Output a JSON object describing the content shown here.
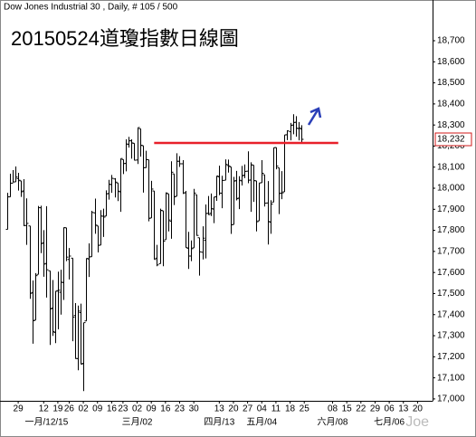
{
  "chart_data": {
    "type": "ohlc",
    "header": "Dow Jones Industrial 30 , Daily, # 105 / 500",
    "title": "20150524道瓊指數日線圖",
    "watermark": "Joe",
    "color": "#000000",
    "open": [
      17805,
      17959,
      18024,
      18030,
      18046,
      18035,
      17987,
      17823,
      17821,
      17505,
      17374,
      17591,
      17907,
      17741,
      17643,
      17608,
      17431,
      17315,
      17514,
      17506,
      17552,
      17812,
      17662,
      17668,
      17396,
      17191,
      17410,
      17169,
      17370,
      17664,
      17675,
      17883,
      17821,
      17730,
      17867,
      17868,
      17975,
      18017,
      18044,
      18025,
      17983,
      18136,
      18118,
      18208,
      18225,
      18213,
      18134,
      18282,
      18202,
      18098,
      18135,
      17859,
      17987,
      17668,
      17642,
      17893,
      17756,
      17973,
      17843,
      18068,
      17962,
      18128,
      18116,
      17979,
      17715,
      17678,
      17717,
      17969,
      17765,
      17696,
      17753,
      17881,
      17881,
      17901,
      17960,
      18054,
      17976,
      18038,
      18108,
      18101,
      17828,
      18036,
      17953,
      18035,
      18062,
      18081,
      18039,
      18109,
      18035,
      17845,
      18026,
      18064,
      17930,
      17839,
      17934,
      18193,
      18097,
      17977,
      17983,
      18254,
      18268,
      18300,
      18313,
      18283,
      18281
    ],
    "high": [
      17978,
      18069,
      18086,
      18103,
      18073,
      18035,
      18043,
      17952,
      17821,
      17562,
      17597,
      17916,
      17917,
      17801,
      17915,
      17608,
      17564,
      17512,
      17604,
      17613,
      17814,
      17812,
      17716,
      17668,
      17455,
      17443,
      17452,
      17362,
      17667,
      17738,
      17893,
      17951,
      17821,
      17896,
      17903,
      17990,
      18040,
      18063,
      18048,
      18025,
      18141,
      18136,
      18232,
      18244,
      18232,
      18213,
      18288,
      18282,
      18202,
      18178,
      18135,
      18035,
      17987,
      17731,
      17903,
      17893,
      17980,
      17973,
      18128,
      18068,
      18166,
      18152,
      18133,
      17987,
      17793,
      17752,
      17997,
      17969,
      17765,
      17819,
      17923,
      17963,
      17975,
      17958,
      18058,
      18107,
      18059,
      18137,
      18136,
      18101,
      18054,
      18082,
      18057,
      18106,
      18113,
      18175,
      18123,
      18109,
      18035,
      18025,
      18133,
      18064,
      18034,
      17943,
      18193,
      18193,
      18097,
      18081,
      18253,
      18275,
      18310,
      18351,
      18342,
      18314,
      18299
    ],
    "low": [
      17805,
      17959,
      18027,
      18030,
      17989,
      17959,
      17820,
      17731,
      17475,
      17262,
      17374,
      17591,
      17692,
      17580,
      17481,
      17256,
      17299,
      17265,
      17330,
      17400,
      17470,
      17654,
      17567,
      17274,
      17190,
      17136,
      17165,
      17037,
      17370,
      17579,
      17675,
      17784,
      17695,
      17730,
      17769,
      17868,
      17946,
      17978,
      17956,
      17939,
      17888,
      18067,
      18080,
      18193,
      18140,
      18132,
      18115,
      18150,
      17979,
      18096,
      17843,
      17859,
      17662,
      17630,
      17642,
      17630,
      17756,
      17795,
      17760,
      17920,
      17962,
      18101,
      17973,
      17718,
      17617,
      17654,
      17717,
      17774,
      17585,
      17662,
      17667,
      17873,
      17868,
      17834,
      17940,
      17967,
      17905,
      18038,
      18074,
      17783,
      17828,
      17942,
      17901,
      18013,
      18048,
      18024,
      17888,
      17935,
      17795,
      17845,
      18026,
      17913,
      17733,
      17784,
      17934,
      18090,
      17877,
      17948,
      17983,
      18228,
      18227,
      18256,
      18245,
      18227,
      18214
    ],
    "close": [
      17959,
      18024,
      18030,
      18053,
      18038,
      17983,
      17823,
      17833,
      17501,
      17371,
      17585,
      17908,
      17737,
      17640,
      17613,
      17427,
      17320,
      17511,
      17516,
      17554,
      17813,
      17673,
      17678,
      17388,
      17192,
      17417,
      17165,
      17362,
      17667,
      17674,
      17885,
      17825,
      17729,
      17868,
      17863,
      17973,
      18019,
      18047,
      18029,
      17986,
      18141,
      18117,
      18210,
      18225,
      18215,
      18133,
      18288,
      18204,
      18097,
      18136,
      17857,
      17996,
      17662,
      17636,
      17895,
      17749,
      17977,
      17849,
      18076,
      17959,
      18128,
      18116,
      17977,
      17718,
      17678,
      17713,
      17977,
      17776,
      17698,
      17763,
      17880,
      17875,
      17903,
      17958,
      18058,
      17977,
      18037,
      18113,
      18106,
      17826,
      18034,
      17950,
      18038,
      18059,
      18080,
      18038,
      18111,
      18036,
      17841,
      18025,
      18071,
      17929,
      17842,
      17925,
      18192,
      18105,
      17975,
      17978,
      18253,
      18272,
      18298,
      18312,
      18285,
      18286,
      18232
    ],
    "xlim": [
      -2.1,
      150.3
    ],
    "xticks": [
      {
        "value": 4,
        "label": "29"
      },
      {
        "value": 13,
        "label": "12"
      },
      {
        "value": 18,
        "label": "19"
      },
      {
        "value": 22,
        "label": "26"
      },
      {
        "value": 27,
        "label": "02"
      },
      {
        "value": 32,
        "label": "09"
      },
      {
        "value": 37,
        "label": "16"
      },
      {
        "value": 41,
        "label": "23"
      },
      {
        "value": 46,
        "label": "02"
      },
      {
        "value": 51,
        "label": "09"
      },
      {
        "value": 56,
        "label": "16"
      },
      {
        "value": 61,
        "label": "23"
      },
      {
        "value": 66,
        "label": "30"
      },
      {
        "value": 75,
        "label": "13"
      },
      {
        "value": 80,
        "label": "20"
      },
      {
        "value": 85,
        "label": "27"
      },
      {
        "value": 90,
        "label": "04"
      },
      {
        "value": 95,
        "label": "11"
      },
      {
        "value": 100,
        "label": "18"
      },
      {
        "value": 105,
        "label": "25"
      },
      {
        "value": 115,
        "label": "08"
      },
      {
        "value": 120,
        "label": "15"
      },
      {
        "value": 125,
        "label": "22"
      },
      {
        "value": 130,
        "label": "29"
      },
      {
        "value": 135,
        "label": "06"
      },
      {
        "value": 140,
        "label": "13"
      },
      {
        "value": 145,
        "label": "20"
      }
    ],
    "month_ticks": [
      {
        "value": 14,
        "label": "一月/12/15"
      },
      {
        "value": 46,
        "label": "三月/02"
      },
      {
        "value": 75,
        "label": "四月/13"
      },
      {
        "value": 90,
        "label": "五月/04"
      },
      {
        "value": 115,
        "label": "六月/08"
      },
      {
        "value": 135,
        "label": "七月/06"
      }
    ],
    "ylim": [
      16991,
      18889
    ],
    "yticks": [
      {
        "value": 17000,
        "label": "17,000"
      },
      {
        "value": 17100,
        "label": "17,100"
      },
      {
        "value": 17200,
        "label": "17,200"
      },
      {
        "value": 17300,
        "label": "17,300"
      },
      {
        "value": 17400,
        "label": "17,400"
      },
      {
        "value": 17500,
        "label": "17,500"
      },
      {
        "value": 17600,
        "label": "17,600"
      },
      {
        "value": 17700,
        "label": "17,700"
      },
      {
        "value": 17800,
        "label": "17,800"
      },
      {
        "value": 17900,
        "label": "17,900"
      },
      {
        "value": 18000,
        "label": "18,000"
      },
      {
        "value": 18100,
        "label": "18,100"
      },
      {
        "value": 18200,
        "label": "18,200"
      },
      {
        "value": 18300,
        "label": "18,300"
      },
      {
        "value": 18400,
        "label": "18,400"
      },
      {
        "value": 18500,
        "label": "18,500"
      },
      {
        "value": 18600,
        "label": "18,600"
      },
      {
        "value": 18700,
        "label": "18,700"
      }
    ],
    "last_price": {
      "value": 18232,
      "label": "18,232",
      "color": "#d01818"
    },
    "resistance": {
      "value": 18215,
      "from": 52,
      "to": 117,
      "color": "#e8202a"
    }
  }
}
